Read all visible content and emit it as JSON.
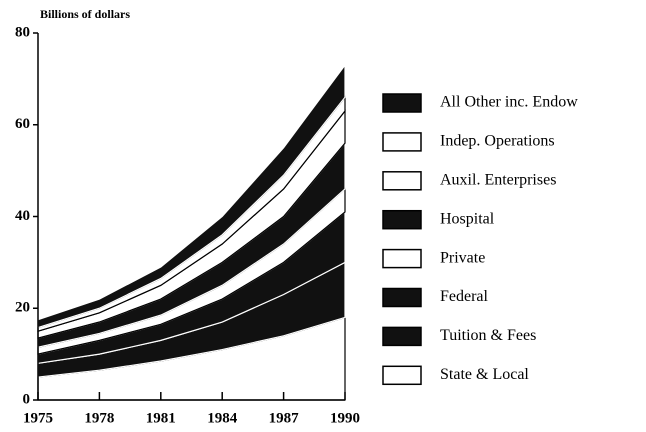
{
  "chart_data": {
    "type": "stacked-area",
    "y_label": "Billions of dollars",
    "x": [
      1975,
      1978,
      1981,
      1984,
      1987,
      1990
    ],
    "xlim": [
      1975,
      1990
    ],
    "xticks": [
      1975,
      1978,
      1981,
      1984,
      1987,
      1990
    ],
    "ylim": [
      0,
      80
    ],
    "yticks": [
      0,
      20,
      40,
      60,
      80
    ],
    "series": [
      {
        "name": "State & Local",
        "color": "#ffffff",
        "values": [
          5,
          6.5,
          8.5,
          11,
          14,
          18
        ]
      },
      {
        "name": "Tuition & Fees",
        "color": "#111111",
        "values": [
          3,
          3.5,
          4.5,
          6,
          9,
          12
        ]
      },
      {
        "name": "Federal",
        "color": "#111111",
        "values": [
          2,
          3,
          3.5,
          5,
          7,
          11
        ]
      },
      {
        "name": "Private",
        "color": "#ffffff",
        "values": [
          1.5,
          1.5,
          2,
          3,
          4,
          5
        ]
      },
      {
        "name": "Hospital",
        "color": "#111111",
        "values": [
          2,
          2.5,
          3.5,
          5,
          6,
          10
        ]
      },
      {
        "name": "Auxil. Enterprises",
        "color": "#ffffff",
        "values": [
          1.5,
          2,
          3,
          4,
          6,
          7
        ]
      },
      {
        "name": "Indep. Operations",
        "color": "#ffffff",
        "values": [
          0.8,
          1,
          1.5,
          2,
          3,
          3
        ]
      },
      {
        "name": "All Other inc. Endow",
        "color": "#111111",
        "values": [
          1.7,
          2,
          2.5,
          4,
          6,
          7
        ]
      }
    ]
  }
}
